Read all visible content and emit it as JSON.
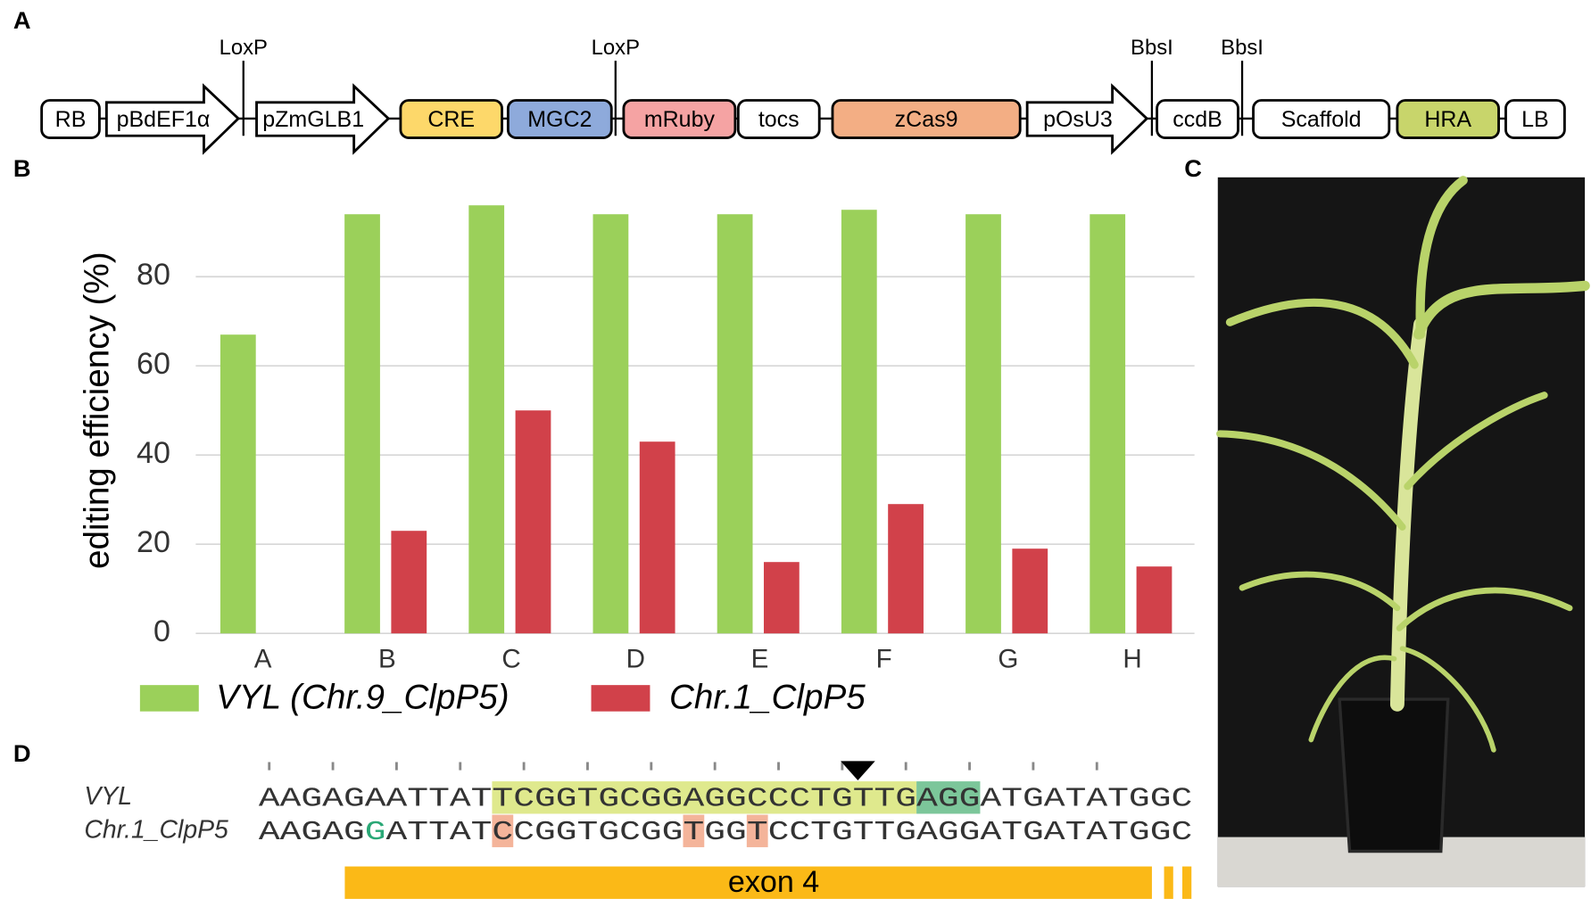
{
  "panel_labels": [
    "A",
    "B",
    "C",
    "D"
  ],
  "construct": {
    "elements": [
      {
        "label": "RB",
        "shape": "box",
        "color": "#ffffff"
      },
      {
        "label": "pBdEF1α",
        "shape": "arrow",
        "color": "#ffffff"
      },
      {
        "label": "LoxP",
        "shape": "site"
      },
      {
        "label": "pZmGLB1",
        "shape": "arrow",
        "color": "#ffffff"
      },
      {
        "label": "CRE",
        "shape": "box",
        "color": "#fdd86a"
      },
      {
        "label": "MGC2",
        "shape": "box",
        "color": "#8eaadb"
      },
      {
        "label": "LoxP",
        "shape": "site"
      },
      {
        "label": "mRuby",
        "shape": "box",
        "color": "#f5a3a3"
      },
      {
        "label": "tocs",
        "shape": "box",
        "color": "#ffffff"
      },
      {
        "label": "zCas9",
        "shape": "box",
        "color": "#f3ae84"
      },
      {
        "label": "pOsU3",
        "shape": "arrow",
        "color": "#ffffff"
      },
      {
        "label": "BbsI",
        "shape": "site"
      },
      {
        "label": "ccdB",
        "shape": "box",
        "color": "#ffffff"
      },
      {
        "label": "BbsI",
        "shape": "site"
      },
      {
        "label": "Scaffold",
        "shape": "box",
        "color": "#ffffff"
      },
      {
        "label": "HRA",
        "shape": "box",
        "color": "#c8d56b"
      },
      {
        "label": "LB",
        "shape": "box",
        "color": "#ffffff"
      }
    ]
  },
  "chart_data": {
    "type": "bar",
    "ylabel": "editing efficiency (%)",
    "categories": [
      "A",
      "B",
      "C",
      "D",
      "E",
      "F",
      "G",
      "H"
    ],
    "series": [
      {
        "name": "VYL (Chr.9_ClpP5)",
        "color": "#9bd05a",
        "values": [
          67,
          94,
          96,
          94,
          94,
          95,
          94,
          94
        ]
      },
      {
        "name": "Chr.1_ClpP5",
        "color": "#d1414a",
        "values": [
          0,
          23,
          50,
          43,
          16,
          29,
          19,
          15
        ]
      }
    ],
    "ylim": [
      0,
      100
    ],
    "yticks": [
      0,
      20,
      40,
      60,
      80
    ],
    "grid": true
  },
  "sequence": {
    "rows": [
      {
        "name": "VYL",
        "segments": [
          {
            "text": "AAGAGAATTAT"
          },
          {
            "text": "TCGGTGCGGAGGCCCTGTTG",
            "highlight": "#dfe98d"
          },
          {
            "text": "AGG",
            "highlight": "#7cc69a"
          },
          {
            "text": "ATGATATGGC"
          }
        ]
      },
      {
        "name": "Chr.1_ClpP5",
        "segments": [
          {
            "text": "AAGAG"
          },
          {
            "text": "G",
            "color": "#2aa876"
          },
          {
            "text": "ATTAT"
          },
          {
            "text": "C",
            "highlight": "#f4b49a"
          },
          {
            "text": "CGGTGCGG"
          },
          {
            "text": "T",
            "highlight": "#f4b49a"
          },
          {
            "text": "GG"
          },
          {
            "text": "T",
            "highlight": "#f4b49a"
          },
          {
            "text": "CCTGTTGAGGATGATATGGC"
          }
        ]
      }
    ],
    "feature": "exon 4"
  }
}
